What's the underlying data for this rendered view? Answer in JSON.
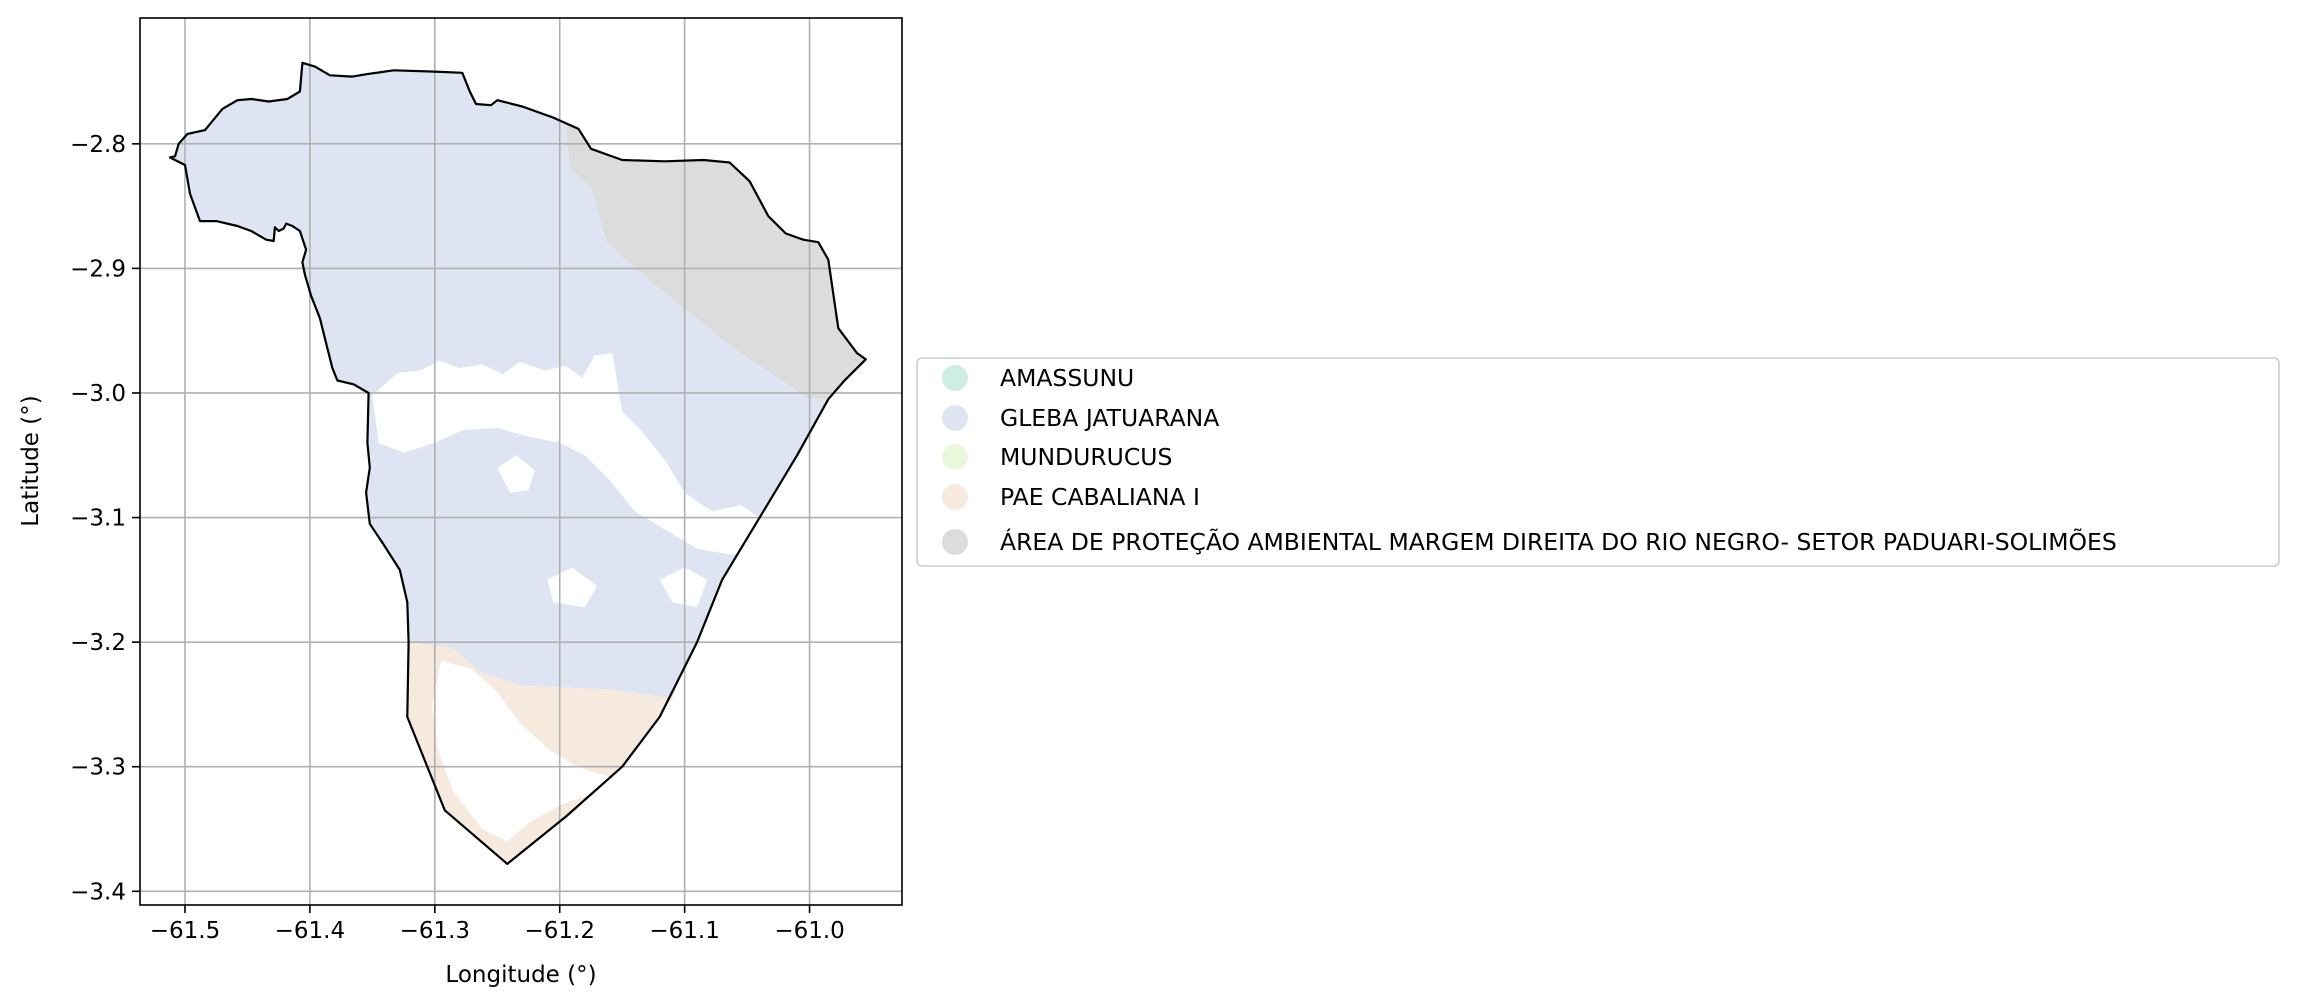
{
  "map": {
    "xlabel": "Longitude (°)",
    "ylabel": "Latitude (°)",
    "x_ticks": [
      -61.5,
      -61.4,
      -61.3,
      -61.2,
      -61.1,
      -61.0
    ],
    "y_ticks": [
      -2.8,
      -2.9,
      -3.0,
      -3.1,
      -3.2,
      -3.3,
      -3.4
    ],
    "x_tick_labels": [
      "−61.5",
      "−61.4",
      "−61.3",
      "−61.2",
      "−61.1",
      "−61.0"
    ],
    "y_tick_labels": [
      "−2.8",
      "−2.9",
      "−3.0",
      "−3.1",
      "−3.2",
      "−3.3",
      "−3.4"
    ],
    "xlim": [
      -61.536,
      -60.926
    ],
    "ylim": [
      -3.411,
      -2.699
    ],
    "grid": true,
    "legend_placement": "center-right outside"
  },
  "legend": {
    "items": [
      {
        "label": "AMASSUNU",
        "color": "#cdeee0"
      },
      {
        "label": "GLEBA JATUARANA",
        "color": "#dfe4f2"
      },
      {
        "label": "MUNDURUCUS",
        "color": "#e9f7da"
      },
      {
        "label": "PAE CABALIANA I",
        "color": "#f6eade"
      },
      {
        "label": "ÁREA DE PROTEÇÃO AMBIENTAL MARGEM DIREITA DO RIO NEGRO- SETOR PADUARI-SOLIMÕES",
        "color": "#dcdcdc"
      }
    ]
  },
  "regions": {
    "boundary": [
      [
        -61.508,
        -2.81
      ],
      [
        -61.505,
        -2.8
      ],
      [
        -61.498,
        -2.792
      ],
      [
        -61.484,
        -2.789
      ],
      [
        -61.47,
        -2.772
      ],
      [
        -61.458,
        -2.765
      ],
      [
        -61.447,
        -2.764
      ],
      [
        -61.433,
        -2.766
      ],
      [
        -61.418,
        -2.764
      ],
      [
        -61.408,
        -2.758
      ],
      [
        -61.406,
        -2.735
      ],
      [
        -61.396,
        -2.738
      ],
      [
        -61.384,
        -2.745
      ],
      [
        -61.366,
        -2.746
      ],
      [
        -61.354,
        -2.744
      ],
      [
        -61.333,
        -2.741
      ],
      [
        -61.3,
        -2.742
      ],
      [
        -61.278,
        -2.743
      ],
      [
        -61.272,
        -2.758
      ],
      [
        -61.267,
        -2.768
      ],
      [
        -61.255,
        -2.769
      ],
      [
        -61.25,
        -2.765
      ],
      [
        -61.23,
        -2.77
      ],
      [
        -61.205,
        -2.779
      ],
      [
        -61.185,
        -2.788
      ],
      [
        -61.175,
        -2.804
      ],
      [
        -61.15,
        -2.813
      ],
      [
        -61.116,
        -2.814
      ],
      [
        -61.085,
        -2.813
      ],
      [
        -61.064,
        -2.815
      ],
      [
        -61.048,
        -2.83
      ],
      [
        -61.033,
        -2.858
      ],
      [
        -61.019,
        -2.872
      ],
      [
        -61.005,
        -2.877
      ],
      [
        -60.993,
        -2.879
      ],
      [
        -60.985,
        -2.893
      ],
      [
        -60.977,
        -2.948
      ],
      [
        -60.962,
        -2.968
      ],
      [
        -60.955,
        -2.973
      ],
      [
        -60.972,
        -2.99
      ],
      [
        -60.985,
        -3.005
      ],
      [
        -61.01,
        -3.05
      ],
      [
        -61.04,
        -3.1
      ],
      [
        -61.07,
        -3.15
      ],
      [
        -61.09,
        -3.2
      ],
      [
        -61.1,
        -3.22
      ],
      [
        -61.12,
        -3.26
      ],
      [
        -61.15,
        -3.3
      ],
      [
        -61.195,
        -3.34
      ],
      [
        -61.242,
        -3.378
      ],
      [
        -61.292,
        -3.335
      ],
      [
        -61.322,
        -3.26
      ],
      [
        -61.321,
        -3.2
      ],
      [
        -61.322,
        -3.168
      ],
      [
        -61.328,
        -3.142
      ],
      [
        -61.342,
        -3.12
      ],
      [
        -61.352,
        -3.105
      ],
      [
        -61.355,
        -3.08
      ],
      [
        -61.352,
        -3.06
      ],
      [
        -61.354,
        -3.04
      ],
      [
        -61.353,
        -3.0
      ],
      [
        -61.365,
        -2.993
      ],
      [
        -61.378,
        -2.99
      ],
      [
        -61.382,
        -2.98
      ],
      [
        -61.387,
        -2.96
      ],
      [
        -61.392,
        -2.94
      ],
      [
        -61.399,
        -2.922
      ],
      [
        -61.404,
        -2.905
      ],
      [
        -61.406,
        -2.895
      ],
      [
        -61.403,
        -2.885
      ],
      [
        -61.408,
        -2.87
      ],
      [
        -61.414,
        -2.866
      ],
      [
        -61.419,
        -2.864
      ],
      [
        -61.421,
        -2.868
      ],
      [
        -61.425,
        -2.87
      ],
      [
        -61.428,
        -2.867
      ],
      [
        -61.429,
        -2.878
      ],
      [
        -61.435,
        -2.877
      ],
      [
        -61.447,
        -2.87
      ],
      [
        -61.458,
        -2.866
      ],
      [
        -61.475,
        -2.862
      ],
      [
        -61.488,
        -2.862
      ],
      [
        -61.496,
        -2.84
      ],
      [
        -61.5,
        -2.817
      ],
      [
        -61.512,
        -2.811
      ]
    ],
    "gleba_jatuarana": [
      [
        -61.508,
        -2.81
      ],
      [
        -61.505,
        -2.8
      ],
      [
        -61.498,
        -2.792
      ],
      [
        -61.484,
        -2.789
      ],
      [
        -61.47,
        -2.772
      ],
      [
        -61.458,
        -2.765
      ],
      [
        -61.447,
        -2.764
      ],
      [
        -61.433,
        -2.766
      ],
      [
        -61.418,
        -2.764
      ],
      [
        -61.408,
        -2.758
      ],
      [
        -61.406,
        -2.735
      ],
      [
        -61.396,
        -2.738
      ],
      [
        -61.384,
        -2.745
      ],
      [
        -61.366,
        -2.746
      ],
      [
        -61.354,
        -2.744
      ],
      [
        -61.333,
        -2.741
      ],
      [
        -61.3,
        -2.742
      ],
      [
        -61.278,
        -2.743
      ],
      [
        -61.272,
        -2.758
      ],
      [
        -61.267,
        -2.768
      ],
      [
        -61.255,
        -2.769
      ],
      [
        -61.25,
        -2.765
      ],
      [
        -61.23,
        -2.77
      ],
      [
        -61.205,
        -2.779
      ],
      [
        -61.195,
        -2.784
      ],
      [
        -61.192,
        -2.82
      ],
      [
        -61.175,
        -2.835
      ],
      [
        -61.162,
        -2.88
      ],
      [
        -61.122,
        -2.915
      ],
      [
        -61.06,
        -2.965
      ],
      [
        -61.0,
        -3.005
      ],
      [
        -60.985,
        -3.005
      ],
      [
        -61.01,
        -3.05
      ],
      [
        -61.04,
        -3.1
      ],
      [
        -61.07,
        -3.15
      ],
      [
        -61.09,
        -3.2
      ],
      [
        -61.1,
        -3.22
      ],
      [
        -61.11,
        -3.245
      ],
      [
        -61.16,
        -3.238
      ],
      [
        -61.23,
        -3.235
      ],
      [
        -61.262,
        -3.225
      ],
      [
        -61.285,
        -3.205
      ],
      [
        -61.321,
        -3.2
      ],
      [
        -61.322,
        -3.168
      ],
      [
        -61.328,
        -3.142
      ],
      [
        -61.342,
        -3.12
      ],
      [
        -61.352,
        -3.105
      ],
      [
        -61.355,
        -3.08
      ],
      [
        -61.352,
        -3.06
      ],
      [
        -61.354,
        -3.04
      ],
      [
        -61.353,
        -3.0
      ],
      [
        -61.365,
        -2.993
      ],
      [
        -61.378,
        -2.99
      ],
      [
        -61.382,
        -2.98
      ],
      [
        -61.387,
        -2.96
      ],
      [
        -61.392,
        -2.94
      ],
      [
        -61.399,
        -2.922
      ],
      [
        -61.404,
        -2.905
      ],
      [
        -61.406,
        -2.895
      ],
      [
        -61.403,
        -2.885
      ],
      [
        -61.408,
        -2.87
      ],
      [
        -61.414,
        -2.866
      ],
      [
        -61.419,
        -2.864
      ],
      [
        -61.421,
        -2.868
      ],
      [
        -61.425,
        -2.87
      ],
      [
        -61.428,
        -2.867
      ],
      [
        -61.429,
        -2.878
      ],
      [
        -61.435,
        -2.877
      ],
      [
        -61.447,
        -2.87
      ],
      [
        -61.458,
        -2.866
      ],
      [
        -61.475,
        -2.862
      ],
      [
        -61.488,
        -2.862
      ],
      [
        -61.496,
        -2.84
      ],
      [
        -61.5,
        -2.817
      ],
      [
        -61.512,
        -2.811
      ]
    ],
    "apa_rio_negro": [
      [
        -61.195,
        -2.784
      ],
      [
        -61.185,
        -2.788
      ],
      [
        -61.175,
        -2.804
      ],
      [
        -61.15,
        -2.813
      ],
      [
        -61.116,
        -2.814
      ],
      [
        -61.085,
        -2.813
      ],
      [
        -61.064,
        -2.815
      ],
      [
        -61.048,
        -2.83
      ],
      [
        -61.033,
        -2.858
      ],
      [
        -61.019,
        -2.872
      ],
      [
        -61.005,
        -2.877
      ],
      [
        -60.993,
        -2.879
      ],
      [
        -60.985,
        -2.893
      ],
      [
        -60.977,
        -2.948
      ],
      [
        -60.962,
        -2.968
      ],
      [
        -60.955,
        -2.973
      ],
      [
        -60.972,
        -2.99
      ],
      [
        -60.985,
        -3.005
      ],
      [
        -61.0,
        -3.005
      ],
      [
        -61.06,
        -2.965
      ],
      [
        -61.122,
        -2.915
      ],
      [
        -61.162,
        -2.88
      ],
      [
        -61.175,
        -2.835
      ],
      [
        -61.192,
        -2.82
      ]
    ],
    "pae_cabaliana": [
      [
        -61.321,
        -3.2
      ],
      [
        -61.285,
        -3.205
      ],
      [
        -61.262,
        -3.225
      ],
      [
        -61.23,
        -3.235
      ],
      [
        -61.16,
        -3.238
      ],
      [
        -61.11,
        -3.245
      ],
      [
        -61.12,
        -3.26
      ],
      [
        -61.15,
        -3.3
      ],
      [
        -61.195,
        -3.34
      ],
      [
        -61.242,
        -3.378
      ],
      [
        -61.292,
        -3.335
      ],
      [
        -61.322,
        -3.26
      ]
    ],
    "white_gaps": [
      [
        [
          -61.35,
          -3.002
        ],
        [
          -61.33,
          -2.984
        ],
        [
          -61.312,
          -2.982
        ],
        [
          -61.296,
          -2.974
        ],
        [
          -61.28,
          -2.98
        ],
        [
          -61.262,
          -2.977
        ],
        [
          -61.246,
          -2.985
        ],
        [
          -61.232,
          -2.975
        ],
        [
          -61.212,
          -2.982
        ],
        [
          -61.195,
          -2.978
        ],
        [
          -61.182,
          -2.988
        ],
        [
          -61.172,
          -2.97
        ],
        [
          -61.158,
          -2.968
        ],
        [
          -61.15,
          -3.015
        ],
        [
          -61.135,
          -3.03
        ],
        [
          -61.115,
          -3.055
        ],
        [
          -61.1,
          -3.08
        ],
        [
          -61.078,
          -3.095
        ],
        [
          -61.055,
          -3.09
        ],
        [
          -61.04,
          -3.1
        ],
        [
          -61.035,
          -3.12
        ],
        [
          -61.062,
          -3.13
        ],
        [
          -61.09,
          -3.125
        ],
        [
          -61.115,
          -3.11
        ],
        [
          -61.14,
          -3.095
        ],
        [
          -61.16,
          -3.07
        ],
        [
          -61.18,
          -3.05
        ],
        [
          -61.2,
          -3.04
        ],
        [
          -61.225,
          -3.035
        ],
        [
          -61.25,
          -3.028
        ],
        [
          -61.278,
          -3.03
        ],
        [
          -61.3,
          -3.04
        ],
        [
          -61.325,
          -3.048
        ],
        [
          -61.345,
          -3.04
        ]
      ],
      [
        [
          -61.25,
          -3.06
        ],
        [
          -61.235,
          -3.05
        ],
        [
          -61.22,
          -3.062
        ],
        [
          -61.225,
          -3.078
        ],
        [
          -61.24,
          -3.08
        ]
      ],
      [
        [
          -61.12,
          -3.15
        ],
        [
          -61.1,
          -3.14
        ],
        [
          -61.082,
          -3.15
        ],
        [
          -61.09,
          -3.172
        ],
        [
          -61.11,
          -3.168
        ]
      ],
      [
        [
          -61.21,
          -3.15
        ],
        [
          -61.19,
          -3.14
        ],
        [
          -61.17,
          -3.155
        ],
        [
          -61.18,
          -3.172
        ],
        [
          -61.205,
          -3.168
        ]
      ],
      [
        [
          -61.295,
          -3.215
        ],
        [
          -61.27,
          -3.222
        ],
        [
          -61.25,
          -3.24
        ],
        [
          -61.232,
          -3.265
        ],
        [
          -61.21,
          -3.285
        ],
        [
          -61.19,
          -3.298
        ],
        [
          -61.172,
          -3.305
        ],
        [
          -61.15,
          -3.31
        ],
        [
          -61.17,
          -3.32
        ],
        [
          -61.198,
          -3.33
        ],
        [
          -61.225,
          -3.345
        ],
        [
          -61.242,
          -3.36
        ],
        [
          -61.262,
          -3.35
        ],
        [
          -61.285,
          -3.32
        ],
        [
          -61.298,
          -3.285
        ],
        [
          -61.302,
          -3.25
        ]
      ]
    ]
  }
}
